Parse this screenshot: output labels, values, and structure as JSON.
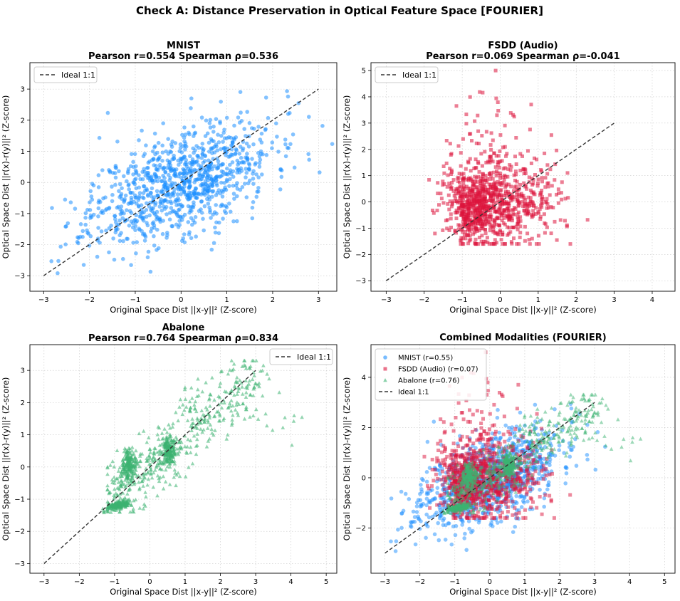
{
  "figure": {
    "title": "Check A: Distance Preservation in Optical Feature Space [FOURIER]"
  },
  "colors": {
    "mnist": "#1e90ff",
    "fsdd": "#dc143c",
    "abalone": "#3cb371",
    "ideal": "#333333"
  },
  "chart_data": [
    {
      "id": "mnist",
      "type": "scatter",
      "title_line1": "MNIST",
      "title_line2": "Pearson r=0.554  Spearman ρ=0.536",
      "xlabel": "Original Space Dist ||x-y||² (Z-score)",
      "ylabel": "Optical Space Dist ||r(x)-r(y)||² (Z-score)",
      "xlim": [
        -3.3,
        3.4
      ],
      "ylim": [
        -3.5,
        3.85
      ],
      "xticks": [
        -3,
        -2,
        -1,
        0,
        1,
        2,
        3
      ],
      "yticks": [
        -3,
        -2,
        -1,
        0,
        1,
        2,
        3
      ],
      "grid": true,
      "legend": {
        "position": "upper-left",
        "entries": [
          "Ideal 1:1"
        ]
      },
      "ideal_line": {
        "label": "Ideal 1:1",
        "from": [
          -3,
          -3
        ],
        "to": [
          3,
          3
        ]
      },
      "series": [
        {
          "name": "MNIST",
          "marker": "circle",
          "color": "#1e90ff",
          "point_count": 1000,
          "pearson_r": 0.554,
          "spearman_rho": 0.536,
          "x_mean": 0,
          "x_sd": 1,
          "y_mean": 0,
          "y_sd": 1,
          "seed": 11
        }
      ]
    },
    {
      "id": "fsdd",
      "type": "scatter",
      "title_line1": "FSDD (Audio)",
      "title_line2": "Pearson r=0.069  Spearman ρ=-0.041",
      "xlabel": "Original Space Dist ||x-y||² (Z-score)",
      "ylabel": "Optical Space Dist ||r(x)-r(y)||² (Z-score)",
      "xlim": [
        -3.4,
        4.6
      ],
      "ylim": [
        -3.4,
        5.3
      ],
      "xticks": [
        -3,
        -2,
        -1,
        0,
        1,
        2,
        3,
        4
      ],
      "yticks": [
        -3,
        -2,
        -1,
        0,
        1,
        2,
        3,
        4,
        5
      ],
      "grid": true,
      "legend": {
        "position": "upper-left",
        "entries": [
          "Ideal 1:1"
        ]
      },
      "ideal_line": {
        "label": "Ideal 1:1",
        "from": [
          -3,
          -3
        ],
        "to": [
          3,
          3
        ]
      },
      "series": [
        {
          "name": "FSDD (Audio)",
          "marker": "square",
          "color": "#dc143c",
          "point_count": 1000,
          "pearson_r": 0.069,
          "spearman_rho": -0.041,
          "x_mean": -0.1,
          "x_sd": 0.9,
          "y_mean": -0.1,
          "y_sd": 0.9,
          "seed": 23
        }
      ]
    },
    {
      "id": "abalone",
      "type": "scatter",
      "title_line1": "Abalone",
      "title_line2": "Pearson r=0.764  Spearman ρ=0.834",
      "xlabel": "Original Space Dist ||x-y||² (Z-score)",
      "ylabel": "Optical Space Dist ||r(x)-r(y)||² (Z-score)",
      "xlim": [
        -3.4,
        5.3
      ],
      "ylim": [
        -3.3,
        3.8
      ],
      "xticks": [
        -3,
        -2,
        -1,
        0,
        1,
        2,
        3,
        4,
        5
      ],
      "yticks": [
        -3,
        -2,
        -1,
        0,
        1,
        2,
        3
      ],
      "grid": true,
      "legend": {
        "position": "upper-right",
        "entries": [
          "Ideal 1:1"
        ]
      },
      "ideal_line": {
        "label": "Ideal 1:1",
        "from": [
          -3,
          -3
        ],
        "to": [
          3,
          3
        ]
      },
      "series": [
        {
          "name": "Abalone",
          "marker": "triangle",
          "color": "#3cb371",
          "point_count": 1000,
          "pearson_r": 0.764,
          "spearman_rho": 0.834,
          "clusters": [
            {
              "x": -1.1,
              "y": -1.25,
              "n": 180
            },
            {
              "x": -0.6,
              "y": 0.1,
              "n": 160
            },
            {
              "x": 0.55,
              "y": 0.55,
              "n": 160
            }
          ],
          "seed": 37
        }
      ]
    },
    {
      "id": "combined",
      "type": "scatter",
      "title_line1": "Combined Modalities (FOURIER)",
      "title_line2": "",
      "xlabel": "Original Space Dist ||x-y||² (Z-score)",
      "ylabel": "Optical Space Dist ||r(x)-r(y)||² (Z-score)",
      "xlim": [
        -3.4,
        5.3
      ],
      "ylim": [
        -3.8,
        5.3
      ],
      "xticks": [
        -3,
        -2,
        -1,
        0,
        1,
        2,
        3,
        4,
        5
      ],
      "yticks": [
        -2,
        0,
        2,
        4
      ],
      "grid": true,
      "legend": {
        "position": "upper-left",
        "entries": [
          "MNIST (r=0.55)",
          "FSDD (Audio) (r=0.07)",
          "Abalone (r=0.76)",
          "Ideal 1:1"
        ]
      },
      "ideal_line": {
        "label": "Ideal 1:1",
        "from": [
          -3,
          -3
        ],
        "to": [
          3,
          3
        ]
      },
      "series": [
        {
          "name": "MNIST (r=0.55)",
          "marker": "circle",
          "color": "#1e90ff"
        },
        {
          "name": "FSDD (Audio) (r=0.07)",
          "marker": "square",
          "color": "#dc143c"
        },
        {
          "name": "Abalone (r=0.76)",
          "marker": "triangle",
          "color": "#3cb371"
        }
      ]
    }
  ]
}
